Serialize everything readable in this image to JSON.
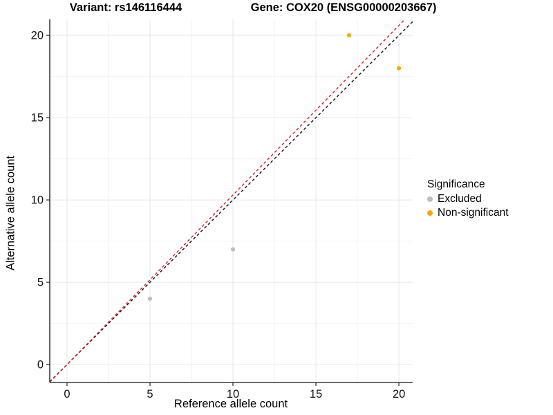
{
  "titles": {
    "variant": "Variant: rs146116444",
    "gene": "Gene: COX20 (ENSG00000203667)"
  },
  "chart_data": {
    "type": "scatter",
    "title": "Variant: rs146116444 / Gene: COX20 (ENSG00000203667)",
    "xlabel": "Reference allele count",
    "ylabel": "Alternative allele count",
    "xlim": [
      -1.04,
      20.83
    ],
    "ylim": [
      -1.09,
      20.97
    ],
    "x_ticks": [
      0,
      5,
      10,
      15,
      20
    ],
    "y_ticks": [
      0,
      5,
      10,
      15,
      20
    ],
    "x_minor_ticks": [
      2.5,
      7.5,
      12.5,
      17.5
    ],
    "y_minor_ticks": [
      2.5,
      7.5,
      12.5,
      17.5
    ],
    "grid": true,
    "legend_position": "right",
    "series": [
      {
        "name": "Excluded",
        "color": "#BEBEBE",
        "points": [
          [
            5,
            4
          ],
          [
            10,
            7
          ]
        ]
      },
      {
        "name": "Non-significant",
        "color": "#FFA500",
        "points": [
          [
            17,
            20
          ],
          [
            20,
            18
          ]
        ]
      }
    ],
    "lines": [
      {
        "name": "identity-line",
        "color": "#1A1A1A",
        "slope": 1.0,
        "intercept": 0,
        "style": "dashed"
      },
      {
        "name": "fit-line",
        "color": "#EC2227",
        "slope": 1.03,
        "intercept": 0,
        "style": "dashed"
      }
    ],
    "legend": {
      "title": "Significance",
      "entries": [
        {
          "label": "Excluded",
          "color": "#BEBEBE"
        },
        {
          "label": "Non-significant",
          "color": "#FFA500"
        }
      ]
    },
    "colors": {
      "grid_major": "#E7E7E7",
      "grid_minor": "#F2F2F2",
      "axis": "#3A3A3A",
      "tick_label": "#111111"
    }
  }
}
